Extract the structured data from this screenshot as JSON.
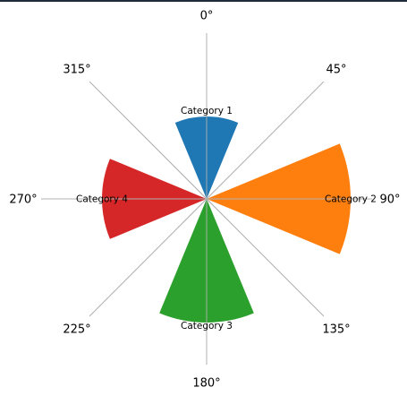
{
  "chart_data": {
    "type": "polar-bar",
    "theta_direction": "clockwise",
    "theta_zero": "top",
    "angle_tick_labels": [
      "0°",
      "45°",
      "90°",
      "135°",
      "180°",
      "225°",
      "270°",
      "315°"
    ],
    "angle_ticks_deg": [
      0,
      45,
      90,
      135,
      180,
      225,
      270,
      315
    ],
    "rmax": 185,
    "grid": true,
    "categories": [
      "Category 1",
      "Category 2",
      "Category 3",
      "Category 4"
    ],
    "series": [
      {
        "values": [
          92,
          161,
          138,
          117
        ],
        "center_deg": [
          0,
          90,
          180,
          270
        ],
        "width_deg": [
          45,
          45,
          45,
          45
        ],
        "colors": [
          "#1f77b4",
          "#ff7f0e",
          "#2ca02c",
          "#d62728"
        ]
      }
    ]
  }
}
